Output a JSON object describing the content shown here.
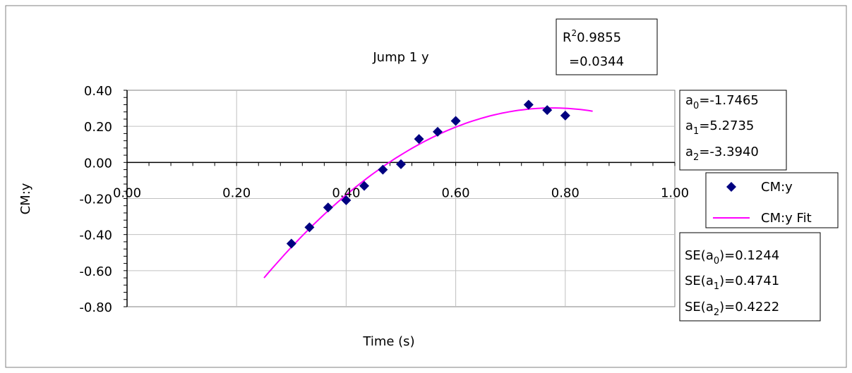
{
  "chart_data": {
    "type": "scatter",
    "title": "Jump 1 y",
    "xlabel": "Time (s)",
    "ylabel": "CM:y",
    "xlim": [
      0,
      1
    ],
    "ylim": [
      -0.8,
      0.4
    ],
    "x_ticks": [
      "0.00",
      "0.20",
      "0.40",
      "0.60",
      "0.80",
      "1.00"
    ],
    "y_ticks": [
      "0.40",
      "0.20",
      "0.00",
      "-0.20",
      "-0.40",
      "-0.60",
      "-0.80"
    ],
    "grid": true,
    "legend": {
      "placement": "right"
    },
    "series": [
      {
        "name": "CM:y",
        "kind": "points",
        "marker": "diamond",
        "color": "#000080",
        "x": [
          0.3,
          0.333,
          0.367,
          0.4,
          0.433,
          0.467,
          0.5,
          0.533,
          0.567,
          0.6,
          0.733,
          0.767,
          0.8
        ],
        "y": [
          -0.45,
          -0.36,
          -0.25,
          -0.21,
          -0.13,
          -0.04,
          -0.01,
          0.13,
          0.17,
          0.23,
          0.32,
          0.29,
          0.26
        ]
      },
      {
        "name": "CM:y Fit",
        "kind": "fit",
        "color": "#ff00ff",
        "x_range": [
          0.25,
          0.85
        ],
        "coefficients": [
          -1.7465,
          5.2735,
          -3.394
        ]
      }
    ],
    "stats": {
      "r2_value": "0.9855",
      "sigma_value": "=0.0344",
      "coefficients": [
        {
          "sub": "0",
          "value": "=-1.7465"
        },
        {
          "sub": "1",
          "value": "=5.2735"
        },
        {
          "sub": "2",
          "value": "=-3.3940"
        }
      ],
      "standard_errors": [
        {
          "sub": "0",
          "value": ")=0.1244"
        },
        {
          "sub": "1",
          "value": ")=0.4741"
        },
        {
          "sub": "2",
          "value": ")=0.4222"
        }
      ]
    }
  }
}
